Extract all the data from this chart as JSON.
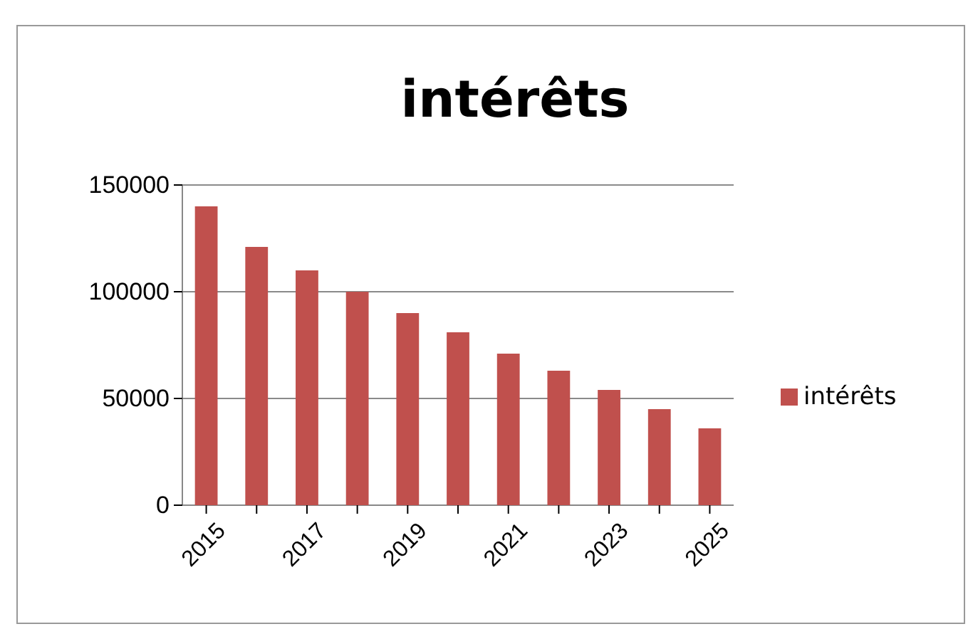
{
  "chart_data": {
    "type": "bar",
    "title": "intérêts",
    "categories": [
      "2015",
      null,
      "2017",
      null,
      "2019",
      null,
      "2021",
      null,
      "2023",
      null,
      "2025"
    ],
    "series": [
      {
        "name": "intérêts",
        "color": "#c0504d",
        "values": [
          140000,
          121000,
          110000,
          100000,
          90000,
          81000,
          71000,
          63000,
          54000,
          45000,
          36000
        ]
      }
    ],
    "ylim": [
      0,
      150000
    ],
    "yticks": [
      0,
      50000,
      100000,
      150000
    ],
    "grid": "y",
    "legend": "right"
  }
}
